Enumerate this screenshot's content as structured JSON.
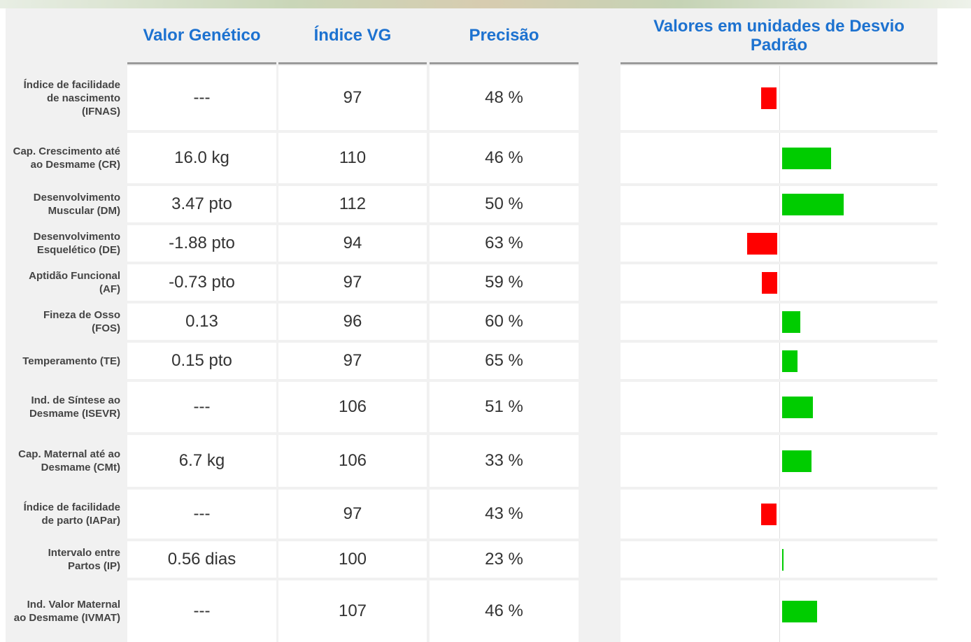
{
  "header": {
    "columns": [
      "Valor Genético",
      "Índice VG",
      "Precisão",
      "Valores em unidades de Desvio Padrão"
    ]
  },
  "rows": [
    {
      "label": "Índice de facilidade de nascimento (IFNAS)",
      "valor": "---",
      "indice": 97,
      "precisao": "48 %"
    },
    {
      "label": "Cap. Crescimento até ao Desmame (CR)",
      "valor": "16.0 kg",
      "indice": 110,
      "precisao": "46 %"
    },
    {
      "label": "Desenvolvimento Muscular (DM)",
      "valor": "3.47 pto",
      "indice": 112,
      "precisao": "50 %"
    },
    {
      "label": "Desenvolvimento Esquelético (DE)",
      "valor": "-1.88 pto",
      "indice": 94,
      "precisao": "63 %"
    },
    {
      "label": "Aptidão Funcional (AF)",
      "valor": "-0.73 pto",
      "indice": 97,
      "precisao": "59 %"
    },
    {
      "label": "Fineza de Osso (FOS)",
      "valor": "0.13",
      "indice": 96,
      "precisao": "60 %"
    },
    {
      "label": "Temperamento (TE)",
      "valor": "0.15 pto",
      "indice": 97,
      "precisao": "65 %"
    },
    {
      "label": "Ind. de Síntese ao Desmame (ISEVR)",
      "valor": "---",
      "indice": 106,
      "precisao": "51 %"
    },
    {
      "label": "Cap. Maternal até ao Desmame (CMt)",
      "valor": "6.7 kg",
      "indice": 106,
      "precisao": "33 %"
    },
    {
      "label": "Índice de facilidade de parto (IAPar)",
      "valor": "---",
      "indice": 97,
      "precisao": "43 %"
    },
    {
      "label": "Intervalo entre Partos (IP)",
      "valor": "0.56 dias",
      "indice": 100,
      "precisao": "23 %"
    },
    {
      "label": "Ind. Valor Maternal ao Desmame (IVMAT)",
      "valor": "---",
      "indice": 107,
      "precisao": "46 %"
    }
  ],
  "chart_data": {
    "type": "bar",
    "orientation": "horizontal",
    "xlim": [
      -3.2,
      3.2
    ],
    "positive_color": "#00cc00",
    "negative_color": "#ff0000",
    "values": [
      -0.32,
      1.0,
      1.25,
      -0.6,
      -0.3,
      0.38,
      0.32,
      0.63,
      0.6,
      -0.32,
      0.04,
      0.72
    ]
  }
}
